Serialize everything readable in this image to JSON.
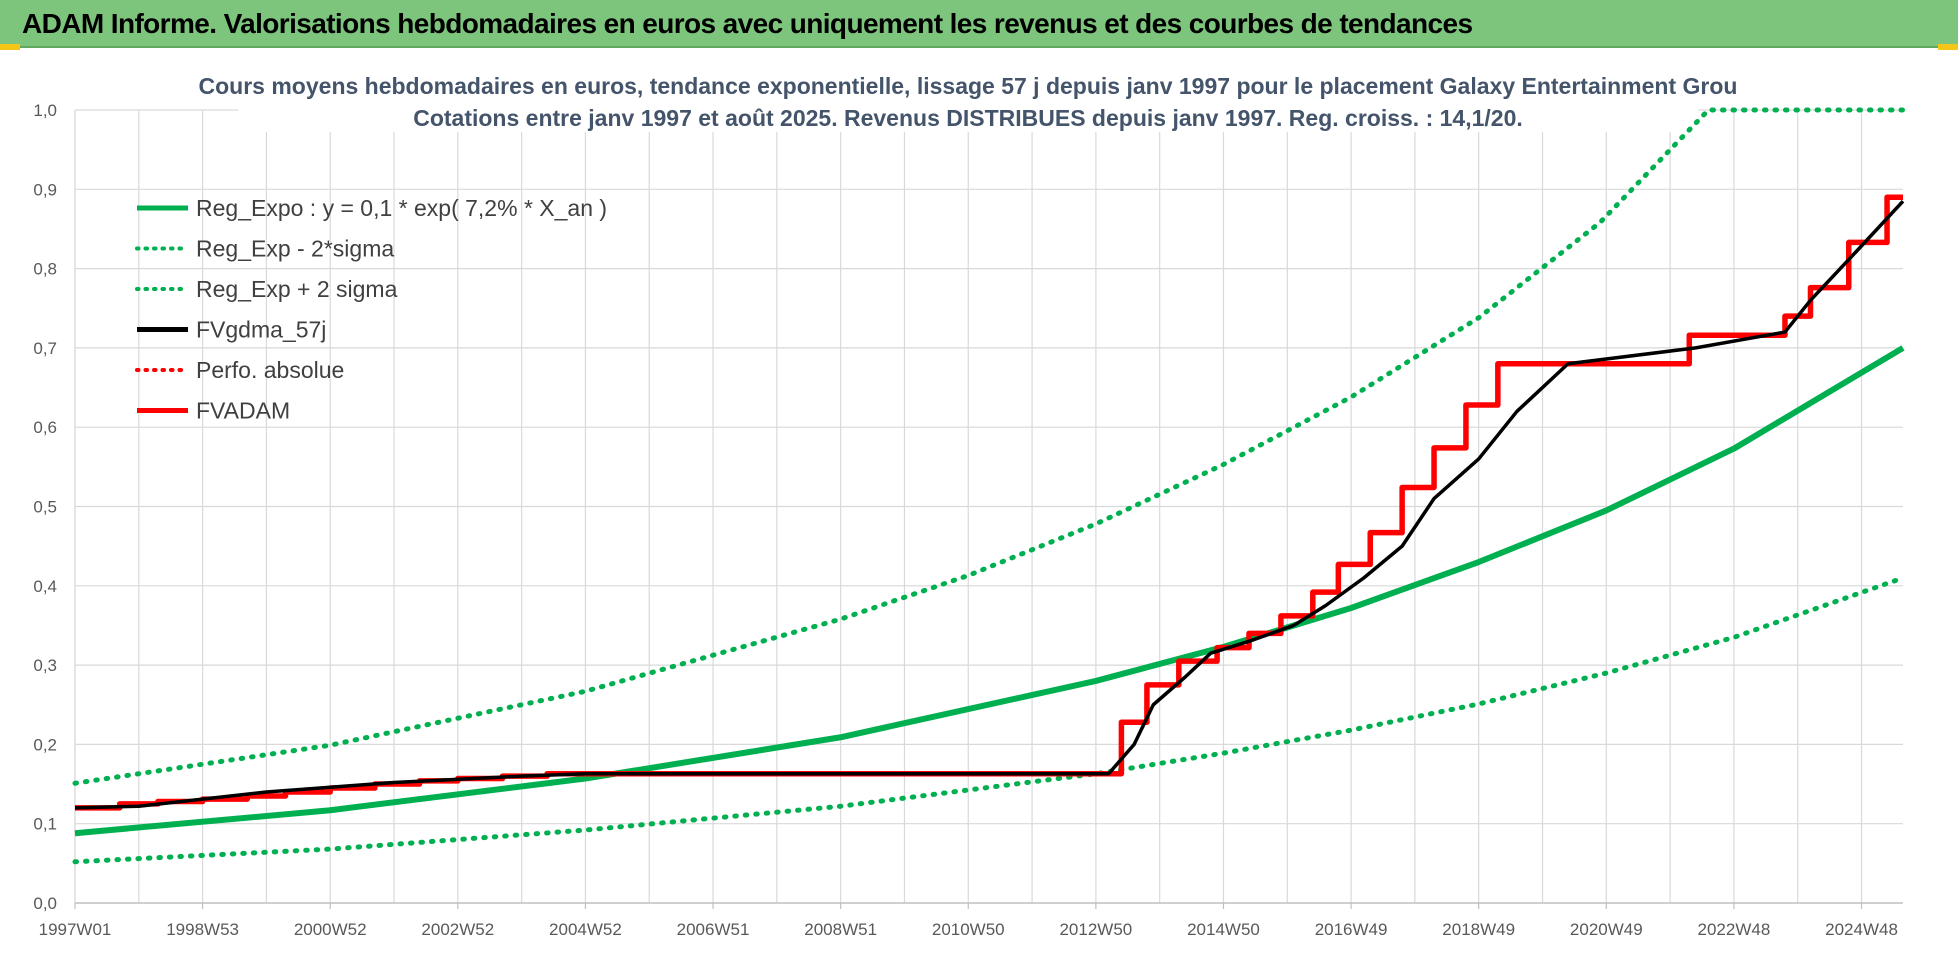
{
  "header": {
    "title": "ADAM Informe. Valorisations hebdomadaires en euros avec uniquement les revenus et des courbes de tendances"
  },
  "chart_data": {
    "type": "line",
    "title_lines": [
      "Cours moyens hebdomadaires en euros, tendance exponentielle, lissage 57 j depuis janv 1997 pour le placement Galaxy Entertainment Grou",
      "Cotations entre janv 1997 et août 2025.  Revenus DISTRIBUES depuis janv 1997. Reg. croiss. : 14,1/20."
    ],
    "xlabel": "",
    "ylabel": "",
    "x_tick_labels": [
      "1997W01",
      "1998W53",
      "2000W52",
      "2002W52",
      "2004W52",
      "2006W51",
      "2008W51",
      "2010W50",
      "2012W50",
      "2014W50",
      "2016W49",
      "2018W49",
      "2020W49",
      "2022W48",
      "2024W48"
    ],
    "x_tick_years": [
      1997.0,
      1999.0,
      2001.0,
      2003.0,
      2005.0,
      2007.0,
      2009.0,
      2011.0,
      2013.0,
      2015.0,
      2017.0,
      2019.0,
      2021.0,
      2023.0,
      2025.0
    ],
    "x_range": [
      1997.0,
      2025.65
    ],
    "ylim": [
      0,
      1.0
    ],
    "y_ticks": [
      "0,0",
      "0,1",
      "0,2",
      "0,3",
      "0,4",
      "0,5",
      "0,6",
      "0,7",
      "0,8",
      "0,9",
      "1,0"
    ],
    "y_tick_values": [
      0,
      0.1,
      0.2,
      0.3,
      0.4,
      0.5,
      0.6,
      0.7,
      0.8,
      0.9,
      1.0
    ],
    "grid": true,
    "legend_placement": "top-left",
    "series": [
      {
        "name": "Reg_Expo : y = 0,1 * exp( 7,2% *  X_an )",
        "color": "#00b050",
        "style": "solid",
        "x": [
          1997.0,
          2001.0,
          2005.0,
          2009.0,
          2013.0,
          2015.0,
          2017.0,
          2019.0,
          2021.0,
          2023.0,
          2025.65
        ],
        "y": [
          0.088,
          0.117,
          0.157,
          0.209,
          0.28,
          0.323,
          0.372,
          0.43,
          0.495,
          0.573,
          0.7
        ]
      },
      {
        "name": "Reg_Exp - 2*sigma",
        "color": "#00b050",
        "style": "dotted",
        "x": [
          1997.0,
          2001.0,
          2005.0,
          2009.0,
          2013.0,
          2015.0,
          2017.0,
          2019.0,
          2021.0,
          2023.0,
          2025.65
        ],
        "y": [
          0.052,
          0.068,
          0.092,
          0.122,
          0.163,
          0.189,
          0.218,
          0.251,
          0.29,
          0.335,
          0.41
        ]
      },
      {
        "name": "Reg_Exp + 2 sigma",
        "color": "#00b050",
        "style": "dotted",
        "x": [
          1997.0,
          2001.0,
          2005.0,
          2009.0,
          2011.0,
          2013.0,
          2015.0,
          2017.0,
          2019.0,
          2020.9,
          2022.6,
          2025.65
        ],
        "y": [
          0.151,
          0.199,
          0.267,
          0.358,
          0.413,
          0.478,
          0.553,
          0.638,
          0.738,
          0.858,
          1.0,
          1.0
        ]
      },
      {
        "name": "FVgdma_57j",
        "color": "#000000",
        "style": "solid",
        "x": [
          1997.0,
          1998.0,
          2000.0,
          2002.0,
          2004.0,
          2005.0,
          2013.2,
          2013.6,
          2013.9,
          2014.4,
          2014.8,
          2015.4,
          2016.1,
          2016.6,
          2017.2,
          2017.8,
          2018.3,
          2019.0,
          2019.6,
          2020.4,
          2022.4,
          2023.8,
          2024.2,
          2024.9,
          2025.65
        ],
        "y": [
          0.12,
          0.122,
          0.14,
          0.152,
          0.16,
          0.163,
          0.163,
          0.2,
          0.25,
          0.285,
          0.315,
          0.33,
          0.35,
          0.375,
          0.41,
          0.45,
          0.51,
          0.56,
          0.62,
          0.68,
          0.7,
          0.72,
          0.76,
          0.82,
          0.885
        ]
      },
      {
        "name": "Perfo. absolue",
        "color": "#ff0000",
        "style": "dotted",
        "x": [],
        "y": []
      },
      {
        "name": "FVADAM",
        "color": "#ff0000",
        "style": "step",
        "x": [
          1997.0,
          1997.7,
          1998.3,
          1999.0,
          1999.7,
          2000.3,
          2001.0,
          2001.7,
          2002.4,
          2003.0,
          2003.7,
          2004.4,
          2013.4,
          2013.8,
          2014.3,
          2014.9,
          2015.4,
          2015.9,
          2016.4,
          2016.8,
          2017.3,
          2017.8,
          2018.3,
          2018.8,
          2019.3,
          2019.8,
          2020.3,
          2022.3,
          2023.8,
          2024.2,
          2024.8,
          2025.4,
          2025.65
        ],
        "y": [
          0.12,
          0.125,
          0.128,
          0.131,
          0.135,
          0.14,
          0.145,
          0.15,
          0.154,
          0.157,
          0.16,
          0.163,
          0.228,
          0.275,
          0.305,
          0.322,
          0.34,
          0.362,
          0.392,
          0.427,
          0.467,
          0.524,
          0.574,
          0.628,
          0.68,
          0.68,
          0.68,
          0.716,
          0.74,
          0.776,
          0.833,
          0.89,
          0.89
        ]
      }
    ]
  }
}
